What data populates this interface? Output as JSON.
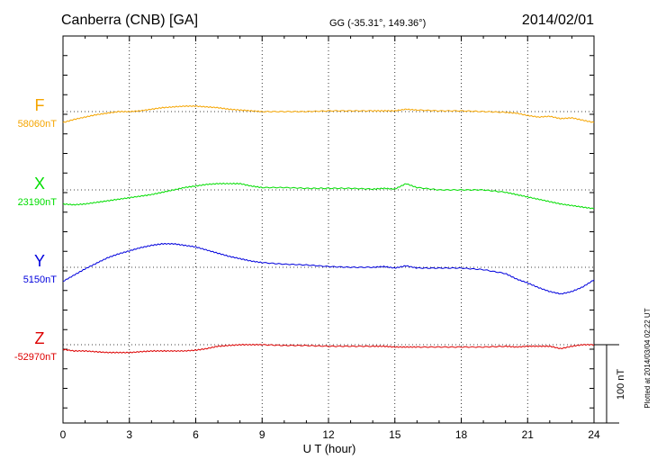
{
  "header": {
    "station": "Canberra (CNB)  [GA]",
    "coords": "GG (-35.31°, 149.36°)",
    "date": "2014/02/01"
  },
  "footer_note": "Plotted at 2014/03/04 02:22 UT",
  "scale_bar_label": "100 nT",
  "chart_data": {
    "type": "line",
    "xlabel": "U T (hour)",
    "xlim": [
      0,
      24
    ],
    "x_ticks": [
      "0",
      "3",
      "6",
      "9",
      "12",
      "15",
      "18",
      "21",
      "24"
    ],
    "y_unit": "nT",
    "scale_bar_nT": 100,
    "grid": true,
    "series": [
      {
        "name": "F",
        "baseline_label": "58060nT",
        "baseline": 58060,
        "color": "#f5a500",
        "x": [
          0,
          0.5,
          1,
          1.5,
          2,
          2.5,
          3,
          3.5,
          4,
          4.5,
          5,
          5.5,
          6,
          6.5,
          7,
          7.5,
          8,
          8.5,
          9,
          10,
          11,
          12,
          13,
          14,
          14.5,
          15,
          15.5,
          16,
          17,
          18,
          19,
          20,
          20.5,
          21,
          21.5,
          22,
          22.5,
          23,
          23.5,
          24
        ],
        "values": [
          58046,
          58050,
          58053,
          58056,
          58058,
          58060,
          58060,
          58061,
          58063,
          58065,
          58066,
          58067,
          58067,
          58066,
          58065,
          58063,
          58062,
          58061,
          58060,
          58060,
          58060,
          58061,
          58061,
          58061,
          58061,
          58061,
          58063,
          58062,
          58061,
          58061,
          58060,
          58059,
          58058,
          58055,
          58053,
          58054,
          58051,
          58052,
          58049,
          58046
        ]
      },
      {
        "name": "X",
        "baseline_label": "23190nT",
        "baseline": 23190,
        "color": "#00dd00",
        "x": [
          0,
          0.5,
          1,
          1.5,
          2,
          2.5,
          3,
          3.5,
          4,
          4.5,
          5,
          5.5,
          6,
          6.5,
          7,
          7.5,
          8,
          8.5,
          9,
          10,
          11,
          12,
          13,
          14,
          14.5,
          15,
          15.5,
          16,
          17,
          18,
          19,
          20,
          20.5,
          21,
          21.5,
          22,
          22.5,
          23,
          23.5,
          24
        ],
        "values": [
          23172,
          23171,
          23172,
          23174,
          23176,
          23178,
          23180,
          23182,
          23184,
          23187,
          23190,
          23193,
          23195,
          23197,
          23198,
          23198,
          23198,
          23195,
          23193,
          23193,
          23192,
          23192,
          23192,
          23191,
          23192,
          23191,
          23198,
          23193,
          23190,
          23190,
          23190,
          23187,
          23184,
          23181,
          23178,
          23175,
          23172,
          23170,
          23168,
          23166
        ]
      },
      {
        "name": "Y",
        "baseline_label": "5150nT",
        "baseline": 5150,
        "color": "#0000dd",
        "x": [
          0,
          0.5,
          1,
          1.5,
          2,
          2.5,
          3,
          3.5,
          4,
          4.5,
          5,
          5.5,
          6,
          6.5,
          7,
          7.5,
          8,
          8.5,
          9,
          10,
          11,
          12,
          13,
          14,
          14.5,
          15,
          15.5,
          16,
          17,
          18,
          19,
          20,
          20.5,
          21,
          21.5,
          22,
          22.5,
          23,
          23.5,
          24
        ],
        "values": [
          5132,
          5140,
          5148,
          5155,
          5162,
          5167,
          5171,
          5175,
          5178,
          5180,
          5180,
          5178,
          5176,
          5172,
          5168,
          5164,
          5161,
          5158,
          5156,
          5154,
          5153,
          5151,
          5150,
          5150,
          5151,
          5149,
          5152,
          5149,
          5149,
          5149,
          5147,
          5142,
          5135,
          5130,
          5124,
          5119,
          5116,
          5119,
          5125,
          5134
        ]
      },
      {
        "name": "Z",
        "baseline_label": "-52970nT",
        "baseline": -52970,
        "color": "#dd0000",
        "x": [
          0,
          0.5,
          1,
          1.5,
          2,
          2.5,
          3,
          3.5,
          4,
          4.5,
          5,
          5.5,
          6,
          6.5,
          7,
          7.5,
          8,
          8.5,
          9,
          10,
          11,
          12,
          13,
          14,
          14.5,
          15,
          15.5,
          16,
          17,
          18,
          19,
          20,
          20.5,
          21,
          21.5,
          22,
          22.5,
          23,
          23.5,
          24
        ],
        "values": [
          -52976,
          -52978,
          -52978,
          -52979,
          -52980,
          -52980,
          -52980,
          -52979,
          -52978,
          -52978,
          -52978,
          -52978,
          -52977,
          -52975,
          -52972,
          -52971,
          -52970,
          -52970,
          -52970,
          -52971,
          -52971,
          -52972,
          -52972,
          -52972,
          -52972,
          -52973,
          -52973,
          -52973,
          -52973,
          -52973,
          -52973,
          -52972,
          -52973,
          -52972,
          -52972,
          -52972,
          -52975,
          -52972,
          -52970,
          -52970
        ]
      }
    ]
  }
}
